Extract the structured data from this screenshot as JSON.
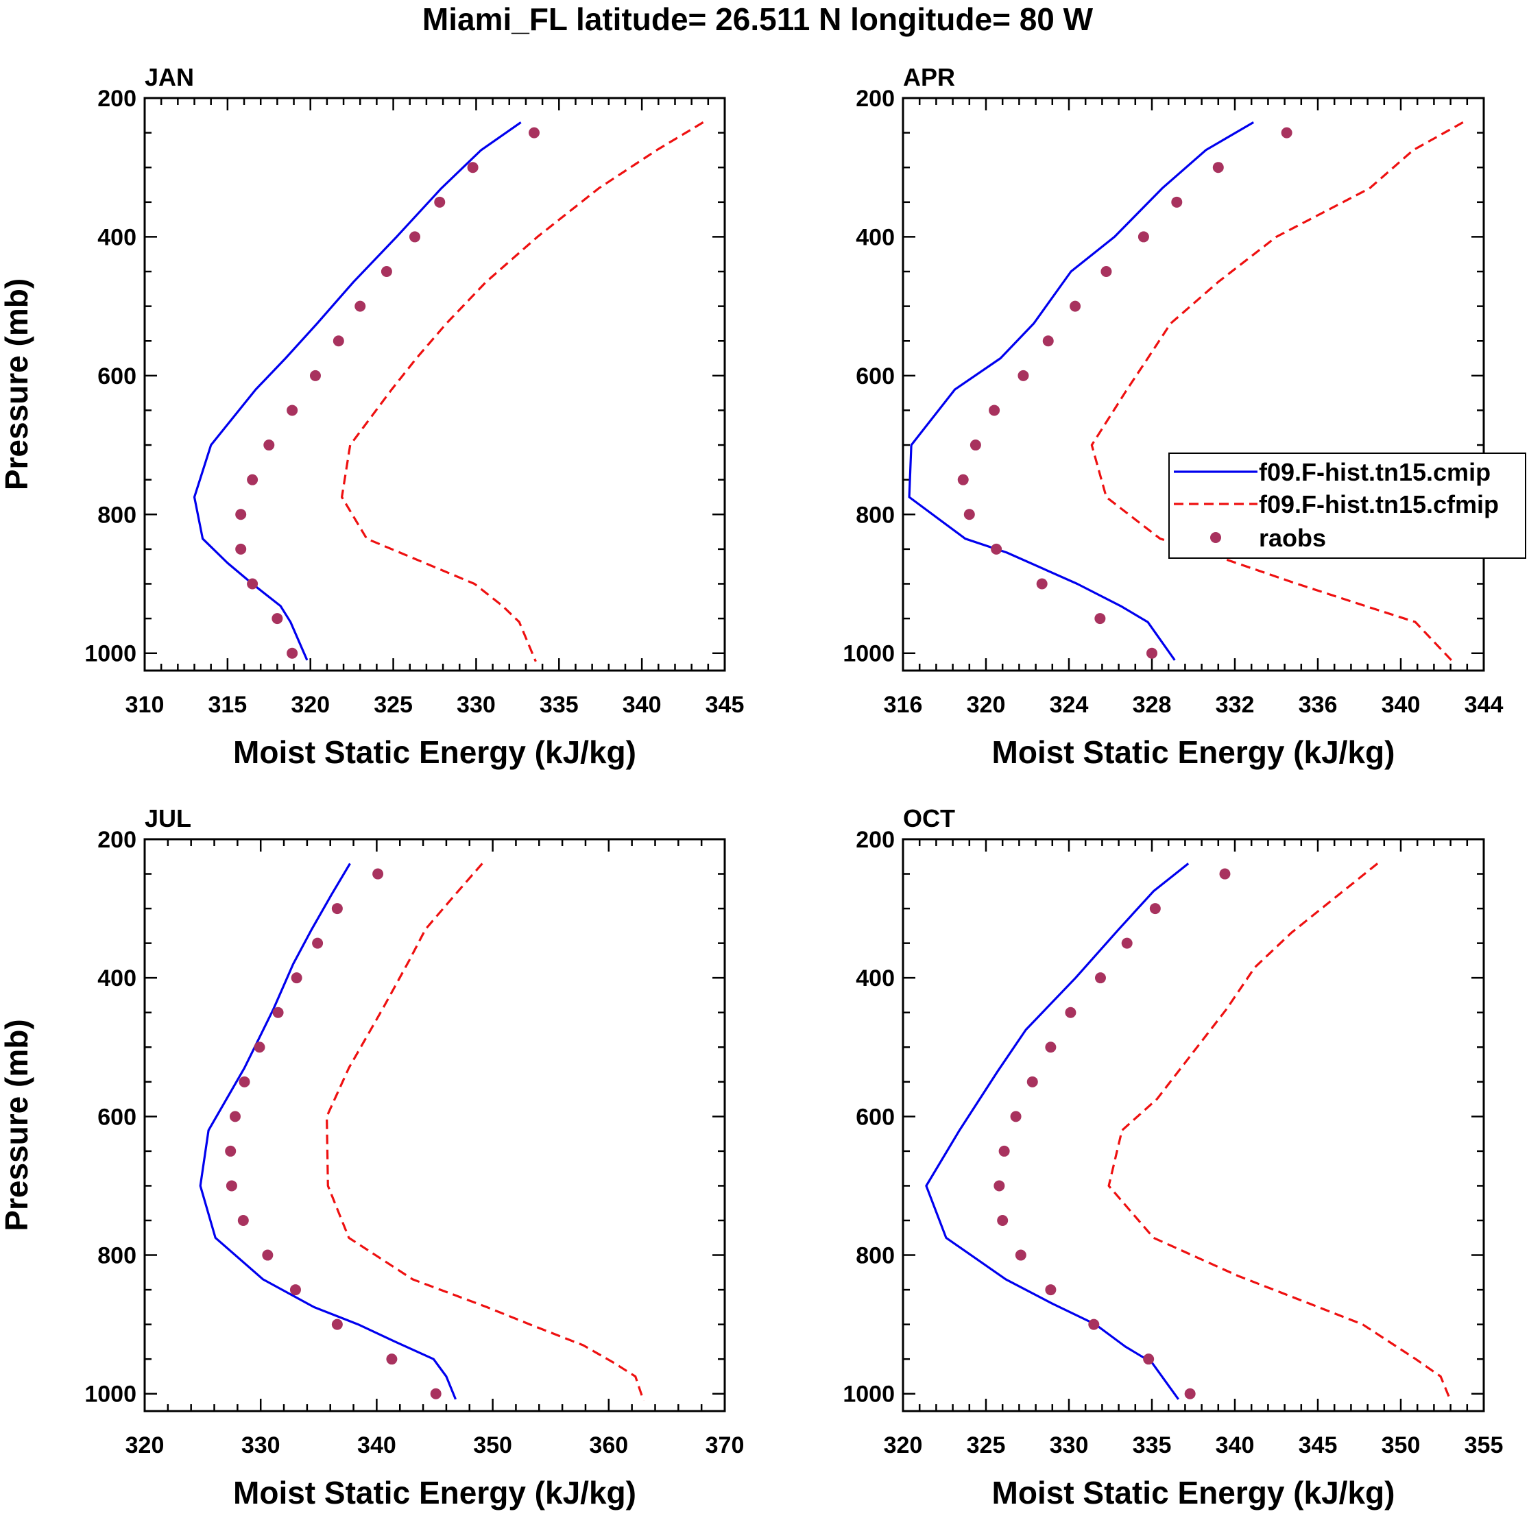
{
  "title": "Miami_FL  latitude= 26.511 N longitude= 80 W",
  "colors": {
    "model_1": "#0000ee",
    "model_2": "#ee1010",
    "raobs": "#a8325e",
    "axis": "#000000"
  },
  "legend": {
    "entries": [
      {
        "label": "f09.F-hist.tn15.cmip",
        "style": "solid"
      },
      {
        "label": "f09.F-hist.tn15.cfmip",
        "style": "dashed"
      },
      {
        "label": "raobs",
        "style": "marker"
      }
    ]
  },
  "chart_data": [
    {
      "type": "line",
      "panel_label": "JAN",
      "xlabel": "Moist Static Energy (kJ/kg)",
      "ylabel": "Pressure (mb)",
      "xlim": [
        310,
        345
      ],
      "ylim": [
        1000,
        200
      ],
      "y_inverted": true,
      "xticks": [
        310,
        315,
        320,
        325,
        330,
        335,
        340,
        345
      ],
      "yticks": [
        200,
        400,
        600,
        800,
        1000
      ],
      "series": [
        {
          "name": "f09.F-hist.tn15.cmip",
          "style": "solid",
          "points": [
            [
              332.7,
              235
            ],
            [
              330.3,
              275
            ],
            [
              327.9,
              330
            ],
            [
              325.2,
              400
            ],
            [
              322.6,
              465
            ],
            [
              320.4,
              525
            ],
            [
              318.5,
              575
            ],
            [
              316.7,
              620
            ],
            [
              314.0,
              700
            ],
            [
              313.0,
              775
            ],
            [
              313.5,
              835
            ],
            [
              315.0,
              870
            ],
            [
              316.5,
              900
            ],
            [
              318.2,
              932
            ],
            [
              318.8,
              955
            ],
            [
              319.8,
              1010
            ]
          ]
        },
        {
          "name": "f09.F-hist.tn15.cfmip",
          "style": "dashed",
          "points": [
            [
              343.7,
              235
            ],
            [
              340.9,
              275
            ],
            [
              337.4,
              330
            ],
            [
              333.7,
              400
            ],
            [
              330.6,
              465
            ],
            [
              328.2,
              525
            ],
            [
              326.4,
              575
            ],
            [
              324.9,
              620
            ],
            [
              322.4,
              700
            ],
            [
              321.9,
              775
            ],
            [
              323.4,
              835
            ],
            [
              326.9,
              870
            ],
            [
              329.9,
              900
            ],
            [
              331.6,
              932
            ],
            [
              332.6,
              955
            ],
            [
              333.6,
              1012
            ]
          ]
        },
        {
          "name": "raobs",
          "style": "marker",
          "points": [
            [
              333.5,
              250
            ],
            [
              329.8,
              300
            ],
            [
              327.8,
              350
            ],
            [
              326.3,
              400
            ],
            [
              324.6,
              450
            ],
            [
              323.0,
              500
            ],
            [
              321.7,
              550
            ],
            [
              320.3,
              600
            ],
            [
              318.9,
              650
            ],
            [
              317.5,
              700
            ],
            [
              316.5,
              750
            ],
            [
              315.8,
              800
            ],
            [
              315.8,
              850
            ],
            [
              316.5,
              900
            ],
            [
              318.0,
              950
            ],
            [
              318.9,
              1000
            ]
          ]
        }
      ]
    },
    {
      "type": "line",
      "panel_label": "APR",
      "xlabel": "Moist Static Energy (kJ/kg)",
      "ylabel": "",
      "xlim": [
        316,
        344
      ],
      "ylim": [
        1000,
        200
      ],
      "y_inverted": true,
      "xticks": [
        316,
        320,
        324,
        328,
        332,
        336,
        340,
        344
      ],
      "yticks": [
        200,
        400,
        600,
        800,
        1000
      ],
      "series": [
        {
          "name": "f09.F-hist.tn15.cmip",
          "style": "solid",
          "points": [
            [
              332.9,
              235
            ],
            [
              330.6,
              275
            ],
            [
              328.5,
              330
            ],
            [
              326.2,
              400
            ],
            [
              324.1,
              450
            ],
            [
              322.3,
              525
            ],
            [
              320.7,
              575
            ],
            [
              318.5,
              620
            ],
            [
              316.4,
              700
            ],
            [
              316.3,
              775
            ],
            [
              319.0,
              835
            ],
            [
              321.0,
              855
            ],
            [
              324.4,
              900
            ],
            [
              326.5,
              932
            ],
            [
              327.8,
              955
            ],
            [
              329.1,
              1010
            ]
          ]
        },
        {
          "name": "f09.F-hist.tn15.cfmip",
          "style": "dashed",
          "points": [
            [
              343.0,
              235
            ],
            [
              340.6,
              275
            ],
            [
              338.5,
              330
            ],
            [
              334.0,
              400
            ],
            [
              331.2,
              465
            ],
            [
              328.9,
              525
            ],
            [
              327.8,
              575
            ],
            [
              326.8,
              620
            ],
            [
              325.1,
              700
            ],
            [
              325.8,
              775
            ],
            [
              328.4,
              835
            ],
            [
              330.6,
              855
            ],
            [
              335.0,
              900
            ],
            [
              338.3,
              932
            ],
            [
              340.7,
              955
            ],
            [
              342.5,
              1012
            ]
          ]
        },
        {
          "name": "raobs",
          "style": "marker",
          "points": [
            [
              334.5,
              250
            ],
            [
              331.2,
              300
            ],
            [
              329.2,
              350
            ],
            [
              327.6,
              400
            ],
            [
              325.8,
              450
            ],
            [
              324.3,
              500
            ],
            [
              323.0,
              550
            ],
            [
              321.8,
              600
            ],
            [
              320.4,
              650
            ],
            [
              319.5,
              700
            ],
            [
              318.9,
              750
            ],
            [
              319.2,
              800
            ],
            [
              320.5,
              850
            ],
            [
              322.7,
              900
            ],
            [
              325.5,
              950
            ],
            [
              328.0,
              1000
            ]
          ]
        }
      ]
    },
    {
      "type": "line",
      "panel_label": "JUL",
      "xlabel": "Moist Static Energy (kJ/kg)",
      "ylabel": "Pressure (mb)",
      "xlim": [
        320,
        370
      ],
      "ylim": [
        1000,
        200
      ],
      "y_inverted": true,
      "xticks": [
        320,
        330,
        340,
        350,
        360,
        370
      ],
      "yticks": [
        200,
        400,
        600,
        800,
        1000
      ],
      "series": [
        {
          "name": "f09.F-hist.tn15.cmip",
          "style": "solid",
          "points": [
            [
              337.7,
              235
            ],
            [
              336.1,
              280
            ],
            [
              334.4,
              330
            ],
            [
              332.8,
              380
            ],
            [
              331.1,
              445
            ],
            [
              328.6,
              530
            ],
            [
              325.5,
              620
            ],
            [
              324.8,
              700
            ],
            [
              326.1,
              775
            ],
            [
              330.2,
              835
            ],
            [
              334.6,
              875
            ],
            [
              338.4,
              900
            ],
            [
              341.6,
              925
            ],
            [
              344.9,
              950
            ],
            [
              346.0,
              975
            ],
            [
              346.8,
              1008
            ]
          ]
        },
        {
          "name": "f09.F-hist.tn15.cfmip",
          "style": "dashed",
          "points": [
            [
              349.1,
              235
            ],
            [
              346.5,
              285
            ],
            [
              344.2,
              330
            ],
            [
              342.8,
              375
            ],
            [
              340.5,
              445
            ],
            [
              337.6,
              530
            ],
            [
              335.7,
              600
            ],
            [
              335.8,
              700
            ],
            [
              337.6,
              775
            ],
            [
              343.1,
              835
            ],
            [
              349.5,
              875
            ],
            [
              353.2,
              900
            ],
            [
              357.8,
              930
            ],
            [
              360.4,
              955
            ],
            [
              362.3,
              975
            ],
            [
              363.0,
              1010
            ]
          ]
        },
        {
          "name": "raobs",
          "style": "marker",
          "points": [
            [
              340.1,
              250
            ],
            [
              336.6,
              300
            ],
            [
              334.9,
              350
            ],
            [
              333.1,
              400
            ],
            [
              331.5,
              450
            ],
            [
              329.9,
              500
            ],
            [
              328.6,
              550
            ],
            [
              327.8,
              600
            ],
            [
              327.4,
              650
            ],
            [
              327.5,
              700
            ],
            [
              328.5,
              750
            ],
            [
              330.6,
              800
            ],
            [
              333.0,
              850
            ],
            [
              336.6,
              900
            ],
            [
              341.3,
              950
            ],
            [
              345.1,
              1000
            ]
          ]
        }
      ]
    },
    {
      "type": "line",
      "panel_label": "OCT",
      "xlabel": "Moist Static Energy (kJ/kg)",
      "ylabel": "",
      "xlim": [
        320,
        355
      ],
      "ylim": [
        1000,
        200
      ],
      "y_inverted": true,
      "xticks": [
        320,
        325,
        330,
        335,
        340,
        345,
        350,
        355
      ],
      "yticks": [
        200,
        400,
        600,
        800,
        1000
      ],
      "series": [
        {
          "name": "f09.F-hist.tn15.cmip",
          "style": "solid",
          "points": [
            [
              337.2,
              235
            ],
            [
              335.1,
              275
            ],
            [
              333.0,
              330
            ],
            [
              330.4,
              400
            ],
            [
              327.4,
              475
            ],
            [
              325.7,
              535
            ],
            [
              323.4,
              620
            ],
            [
              321.4,
              700
            ],
            [
              322.6,
              775
            ],
            [
              326.2,
              835
            ],
            [
              329.0,
              870
            ],
            [
              331.6,
              900
            ],
            [
              333.4,
              932
            ],
            [
              335.0,
              955
            ],
            [
              336.6,
              1008
            ]
          ]
        },
        {
          "name": "f09.F-hist.tn15.cfmip",
          "style": "dashed",
          "points": [
            [
              348.6,
              235
            ],
            [
              346.0,
              285
            ],
            [
              343.4,
              335
            ],
            [
              341.2,
              385
            ],
            [
              339.5,
              445
            ],
            [
              337.4,
              510
            ],
            [
              335.3,
              575
            ],
            [
              333.2,
              620
            ],
            [
              332.4,
              700
            ],
            [
              335.1,
              775
            ],
            [
              340.2,
              830
            ],
            [
              344.5,
              870
            ],
            [
              347.7,
              900
            ],
            [
              350.9,
              950
            ],
            [
              352.4,
              975
            ],
            [
              353.0,
              1010
            ]
          ]
        },
        {
          "name": "raobs",
          "style": "marker",
          "points": [
            [
              339.4,
              250
            ],
            [
              335.2,
              300
            ],
            [
              333.5,
              350
            ],
            [
              331.9,
              400
            ],
            [
              330.1,
              450
            ],
            [
              328.9,
              500
            ],
            [
              327.8,
              550
            ],
            [
              326.8,
              600
            ],
            [
              326.1,
              650
            ],
            [
              325.8,
              700
            ],
            [
              326.0,
              750
            ],
            [
              327.1,
              800
            ],
            [
              328.9,
              850
            ],
            [
              331.5,
              900
            ],
            [
              334.8,
              950
            ],
            [
              337.3,
              1000
            ]
          ]
        }
      ]
    }
  ]
}
